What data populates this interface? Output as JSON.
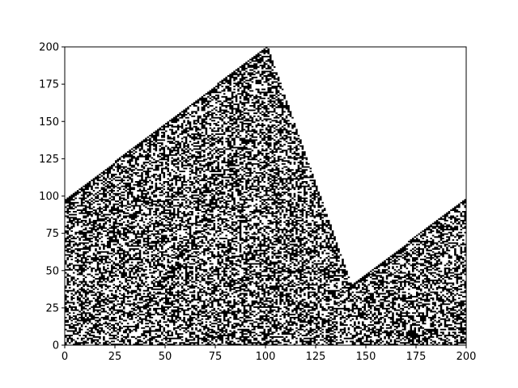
{
  "chart_data": {
    "type": "heatmap",
    "title": "",
    "xlabel": "",
    "ylabel": "",
    "xlim": [
      0,
      200
    ],
    "ylim": [
      0,
      200
    ],
    "x_ticks": [
      0,
      25,
      50,
      75,
      100,
      125,
      150,
      175,
      200
    ],
    "y_ticks": [
      0,
      25,
      50,
      75,
      100,
      125,
      150,
      175,
      200
    ],
    "x_tick_labels": [
      "0",
      "25",
      "50",
      "75",
      "100",
      "125",
      "150",
      "175",
      "200"
    ],
    "y_tick_labels": [
      "0",
      "25",
      "50",
      "75",
      "100",
      "125",
      "150",
      "175",
      "200"
    ],
    "grid": false,
    "colormap": [
      "#ffffff",
      "#000000"
    ],
    "description_of_values": "binary cell values (0 = white, 1 = black) of a cellular-automaton-like pattern",
    "regions": [
      {
        "shape": "left-wedge",
        "boundary_top": [
          [
            0,
            97
          ],
          [
            101,
            200
          ]
        ],
        "right_edge": [
          [
            101,
            200
          ],
          [
            143,
            40
          ]
        ]
      },
      {
        "shape": "right-wedge",
        "boundary_top": [
          [
            143,
            40
          ],
          [
            200,
            98
          ]
        ]
      }
    ],
    "grid_size": [
      200,
      200
    ]
  }
}
